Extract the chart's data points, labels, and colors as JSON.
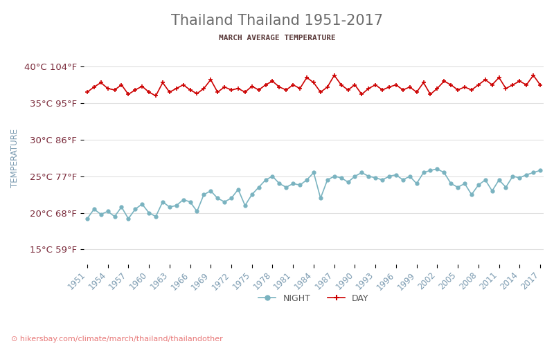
{
  "title": "Thailand Thailand 1951-2017",
  "subtitle": "MARCH AVERAGE TEMPERATURE",
  "xlabel_url": "hikersbay.com/climate/march/thailand/thailandother",
  "ylabel": "TEMPERATURE",
  "x_start": 1951,
  "x_end": 2017,
  "yticks_c": [
    15,
    20,
    25,
    30,
    35,
    40
  ],
  "yticks_f": [
    59,
    68,
    77,
    86,
    95,
    104
  ],
  "xticks": [
    1951,
    1954,
    1957,
    1960,
    1963,
    1966,
    1969,
    1972,
    1975,
    1978,
    1981,
    1984,
    1987,
    1990,
    1993,
    1996,
    1999,
    2002,
    2005,
    2008,
    2011,
    2014,
    2017
  ],
  "day_color": "#cc0000",
  "night_color": "#7ab3c0",
  "title_color": "#6b6b6b",
  "subtitle_color": "#5a3a3a",
  "axis_label_color": "#7a9ab0",
  "tick_label_color": "#7a2a3a",
  "url_color": "#e87878",
  "background_color": "#ffffff",
  "grid_color": "#e0e0e0",
  "day_data": [
    36.5,
    37.2,
    37.8,
    37.0,
    36.8,
    37.5,
    36.2,
    36.8,
    37.3,
    36.5,
    36.0,
    37.8,
    36.5,
    37.0,
    37.5,
    36.8,
    36.3,
    37.0,
    38.2,
    36.5,
    37.2,
    36.8,
    37.0,
    36.5,
    37.3,
    36.8,
    37.5,
    38.0,
    37.2,
    36.8,
    37.5,
    37.0,
    38.5,
    37.8,
    36.5,
    37.2,
    38.8,
    37.5,
    36.8,
    37.5,
    36.2,
    37.0,
    37.5,
    36.8,
    37.2,
    37.5,
    36.8,
    37.2,
    36.5,
    37.8,
    36.2,
    37.0,
    38.0,
    37.5,
    36.8,
    37.2,
    36.8,
    37.5,
    38.2,
    37.5,
    38.5,
    37.0,
    37.5,
    38.0,
    37.5,
    38.8,
    37.5
  ],
  "night_data": [
    19.2,
    20.5,
    19.8,
    20.2,
    19.5,
    20.8,
    19.2,
    20.5,
    21.2,
    20.0,
    19.5,
    21.5,
    20.8,
    21.0,
    21.8,
    21.5,
    20.2,
    22.5,
    23.0,
    22.0,
    21.5,
    22.0,
    23.2,
    21.0,
    22.5,
    23.5,
    24.5,
    25.0,
    24.0,
    23.5,
    24.0,
    23.8,
    24.5,
    25.5,
    22.0,
    24.5,
    25.0,
    24.8,
    24.2,
    25.0,
    25.5,
    25.0,
    24.8,
    24.5,
    25.0,
    25.2,
    24.5,
    25.0,
    24.0,
    25.5,
    25.8,
    26.0,
    25.5,
    24.0,
    23.5,
    24.0,
    22.5,
    23.8,
    24.5,
    23.0,
    24.5,
    23.5,
    25.0,
    24.8,
    25.2,
    25.5,
    25.8
  ]
}
